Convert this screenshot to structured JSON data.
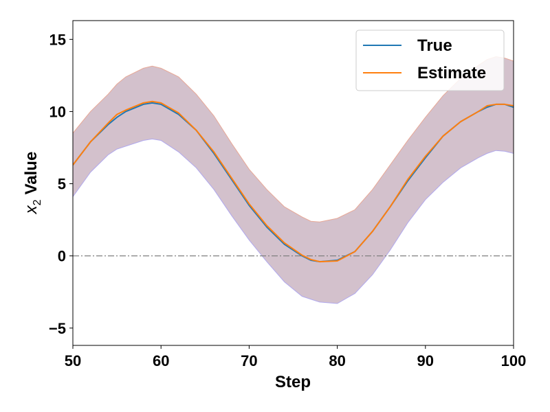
{
  "chart_data": {
    "type": "line",
    "xlabel": "Step",
    "ylabel_var": "x",
    "ylabel_sub": "2",
    "ylabel_suffix": "Value",
    "xlim": [
      50,
      100
    ],
    "ylim": [
      -6.2,
      16.3
    ],
    "xticks": [
      50,
      60,
      70,
      80,
      90,
      100
    ],
    "yticks": [
      -5,
      0,
      5,
      10,
      15
    ],
    "reference_line_y": 0,
    "grid": false,
    "legend_position": "top-right",
    "x": [
      50,
      52,
      54,
      55,
      56,
      58,
      59,
      60,
      62,
      64,
      66,
      68,
      70,
      72,
      74,
      76,
      77,
      78,
      80,
      82,
      84,
      86,
      88,
      90,
      92,
      94,
      96,
      97,
      98,
      99,
      100
    ],
    "series": [
      {
        "name": "True",
        "color": "#1f77b4",
        "values": [
          6.3,
          7.9,
          9.1,
          9.6,
          10.0,
          10.5,
          10.6,
          10.5,
          9.8,
          8.7,
          7.1,
          5.3,
          3.5,
          2.0,
          0.8,
          0.0,
          -0.3,
          -0.4,
          -0.3,
          0.3,
          1.7,
          3.4,
          5.2,
          6.8,
          8.3,
          9.3,
          10.0,
          10.3,
          10.5,
          10.5,
          10.3
        ]
      },
      {
        "name": "Estimate",
        "color": "#ff7f0e",
        "values": [
          6.3,
          7.9,
          9.2,
          9.8,
          10.1,
          10.6,
          10.7,
          10.6,
          9.9,
          8.7,
          7.2,
          5.4,
          3.6,
          2.1,
          0.9,
          0.05,
          -0.25,
          -0.4,
          -0.35,
          0.3,
          1.7,
          3.4,
          5.3,
          6.9,
          8.3,
          9.3,
          10.0,
          10.4,
          10.5,
          10.5,
          10.4
        ]
      }
    ],
    "band": {
      "fill_color": "#bca0b0",
      "upper_edge_color": "#e8a896",
      "lower_edge_color": "#b0a8ee",
      "upper": [
        8.5,
        10.0,
        11.2,
        11.9,
        12.4,
        13.0,
        13.15,
        13.0,
        12.4,
        11.2,
        9.7,
        7.8,
        6.0,
        4.6,
        3.4,
        2.7,
        2.4,
        2.35,
        2.6,
        3.2,
        4.6,
        6.3,
        8.0,
        9.6,
        11.1,
        12.3,
        13.2,
        13.6,
        13.8,
        13.7,
        13.5
      ],
      "lower": [
        4.1,
        5.8,
        7.0,
        7.4,
        7.6,
        8.0,
        8.1,
        8.0,
        7.2,
        6.1,
        4.6,
        2.8,
        1.1,
        -0.4,
        -1.8,
        -2.8,
        -3.0,
        -3.2,
        -3.3,
        -2.6,
        -1.3,
        0.4,
        2.3,
        3.9,
        5.1,
        6.1,
        6.8,
        7.1,
        7.3,
        7.25,
        7.1
      ]
    }
  }
}
